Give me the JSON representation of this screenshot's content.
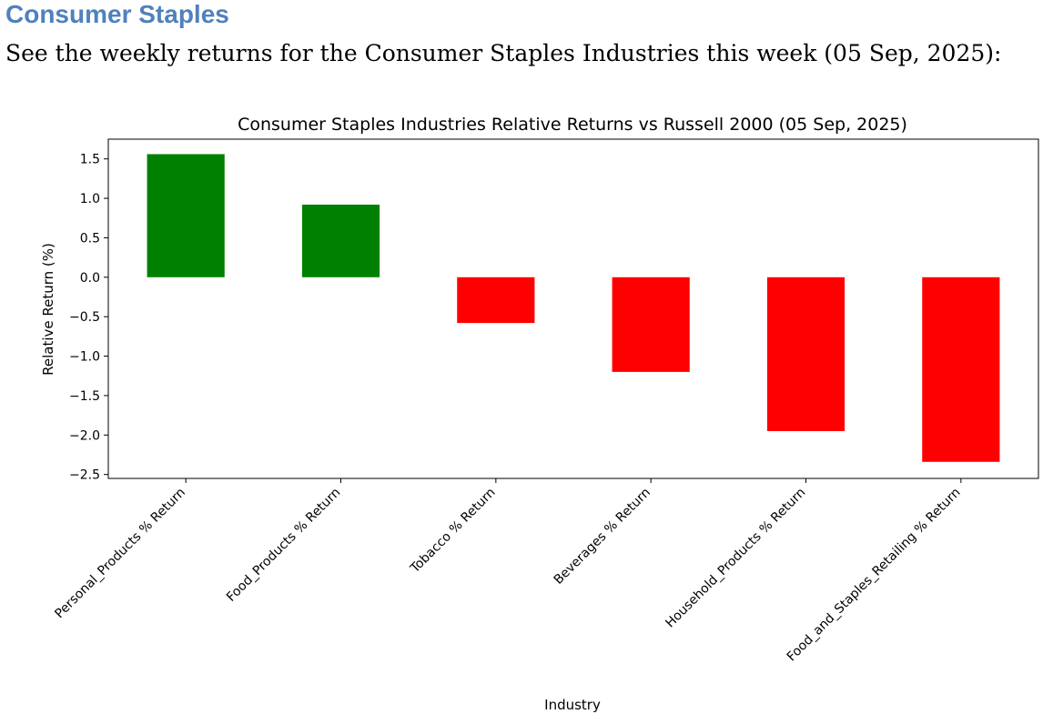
{
  "heading": "Consumer Staples",
  "intro": "See the weekly returns for the Consumer Staples Industries this week (05 Sep, 2025):",
  "colors": {
    "heading": "#4f81bd",
    "positive": "#008000",
    "negative": "#ff0000"
  },
  "chart_data": {
    "type": "bar",
    "title": "Consumer Staples Industries Relative Returns vs Russell 2000 (05 Sep, 2025)",
    "xlabel": "Industry",
    "ylabel": "Relative Return (%)",
    "categories": [
      "Personal_Products % Return",
      "Food_Products % Return",
      "Tobacco % Return",
      "Beverages % Return",
      "Household_Products % Return",
      "Food_and_Staples_Retailing % Return"
    ],
    "values": [
      1.56,
      0.92,
      -0.58,
      -1.2,
      -1.95,
      -2.34
    ],
    "ylim": [
      -2.55,
      1.75
    ],
    "yticks": [
      1.5,
      1.0,
      0.5,
      0.0,
      -0.5,
      -1.0,
      -1.5,
      -2.0,
      -2.5
    ],
    "ytick_labels": [
      "1.5",
      "1.0",
      "0.5",
      "0.0",
      "−0.5",
      "−1.0",
      "−1.5",
      "−2.0",
      "−2.5"
    ],
    "grid": false,
    "legend": "none"
  }
}
